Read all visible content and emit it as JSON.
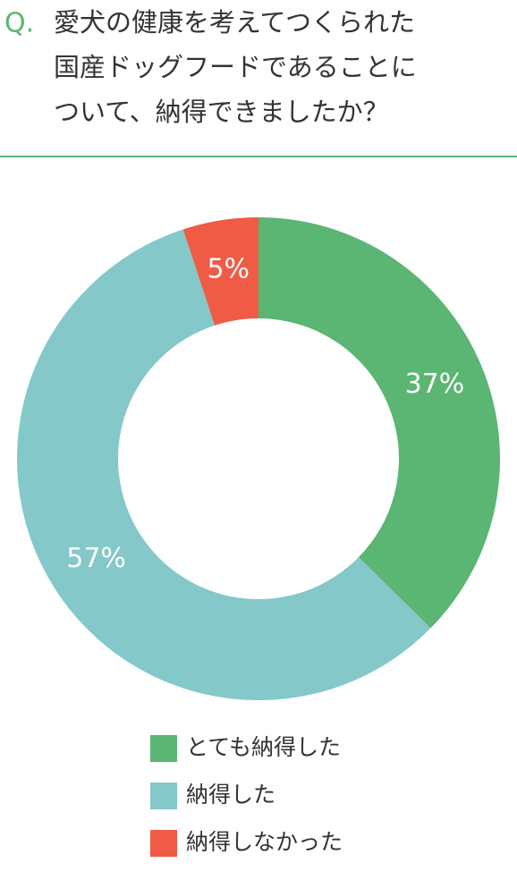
{
  "chart_data": {
    "type": "donut",
    "title_prefix": "Q.",
    "title_lines": [
      "愛犬の健康を考えてつくられた",
      "国産ドッグフードであることに",
      "ついて、納得できましたか？"
    ],
    "categories": [
      "とても納得した",
      "納得した",
      "納得しなかった"
    ],
    "values": [
      37,
      57,
      5
    ],
    "value_labels": [
      "37%",
      "57%",
      "5%"
    ],
    "colors": [
      "#5bb573",
      "#84c8c9",
      "#ef5b45"
    ],
    "legend": "bottom"
  }
}
